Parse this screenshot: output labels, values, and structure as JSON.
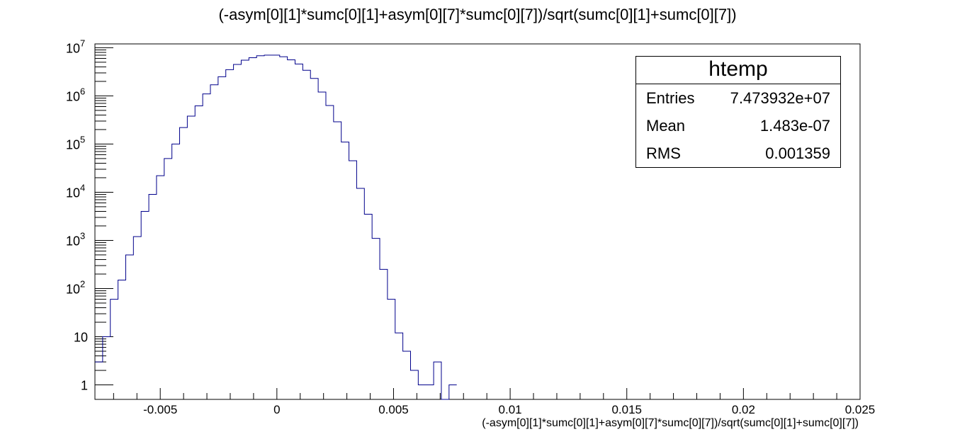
{
  "chart_data": {
    "type": "histogram",
    "title": "(-asym[0][1]*sumc[0][1]+asym[0][7]*sumc[0][7])/sqrt(sumc[0][1]+sumc[0][7])",
    "xlabel": "(-asym[0][1]*sumc[0][1]+asym[0][7]*sumc[0][7])/sqrt(sumc[0][1]+sumc[0][7])",
    "ylabel": "",
    "xlim": [
      -0.0078,
      0.025
    ],
    "ylim": [
      0.5,
      12000000
    ],
    "yscale": "log",
    "line_color": "#00008b",
    "x_ticks": [
      "-0.005",
      "0",
      "0.005",
      "0.01",
      "0.015",
      "0.02",
      "0.025"
    ],
    "x_tick_values": [
      -0.005,
      0,
      0.005,
      0.01,
      0.015,
      0.02,
      0.025
    ],
    "y_ticks": [
      {
        "value": 1,
        "label": "1"
      },
      {
        "value": 10,
        "label": "10"
      },
      {
        "value": 100,
        "label": "10",
        "exp": "2"
      },
      {
        "value": 1000,
        "label": "10",
        "exp": "3"
      },
      {
        "value": 10000,
        "label": "10",
        "exp": "4"
      },
      {
        "value": 100000,
        "label": "10",
        "exp": "5"
      },
      {
        "value": 1000000,
        "label": "10",
        "exp": "6"
      },
      {
        "value": 10000000,
        "label": "10",
        "exp": "7"
      }
    ],
    "bin_edges_start": -0.0078,
    "bin_width": 0.00033,
    "counts": [
      3,
      10,
      60,
      150,
      500,
      1200,
      4000,
      9000,
      22000,
      50000,
      100000,
      220000,
      380000,
      620000,
      1100000,
      1700000,
      2500000,
      3500000,
      4500000,
      5500000,
      6200000,
      6800000,
      7000000,
      7000000,
      6500000,
      5600000,
      4600000,
      3400000,
      2300000,
      1200000,
      630000,
      290000,
      110000,
      45000,
      12000,
      3500,
      1100,
      250,
      60,
      12,
      5,
      2,
      1,
      1,
      3,
      0,
      1
    ]
  },
  "stats_box": {
    "title": "htemp",
    "rows": [
      {
        "label": "Entries",
        "value": "7.473932e+07"
      },
      {
        "label": "Mean",
        "value": "1.483e-07"
      },
      {
        "label": "RMS",
        "value": "0.001359"
      }
    ]
  }
}
